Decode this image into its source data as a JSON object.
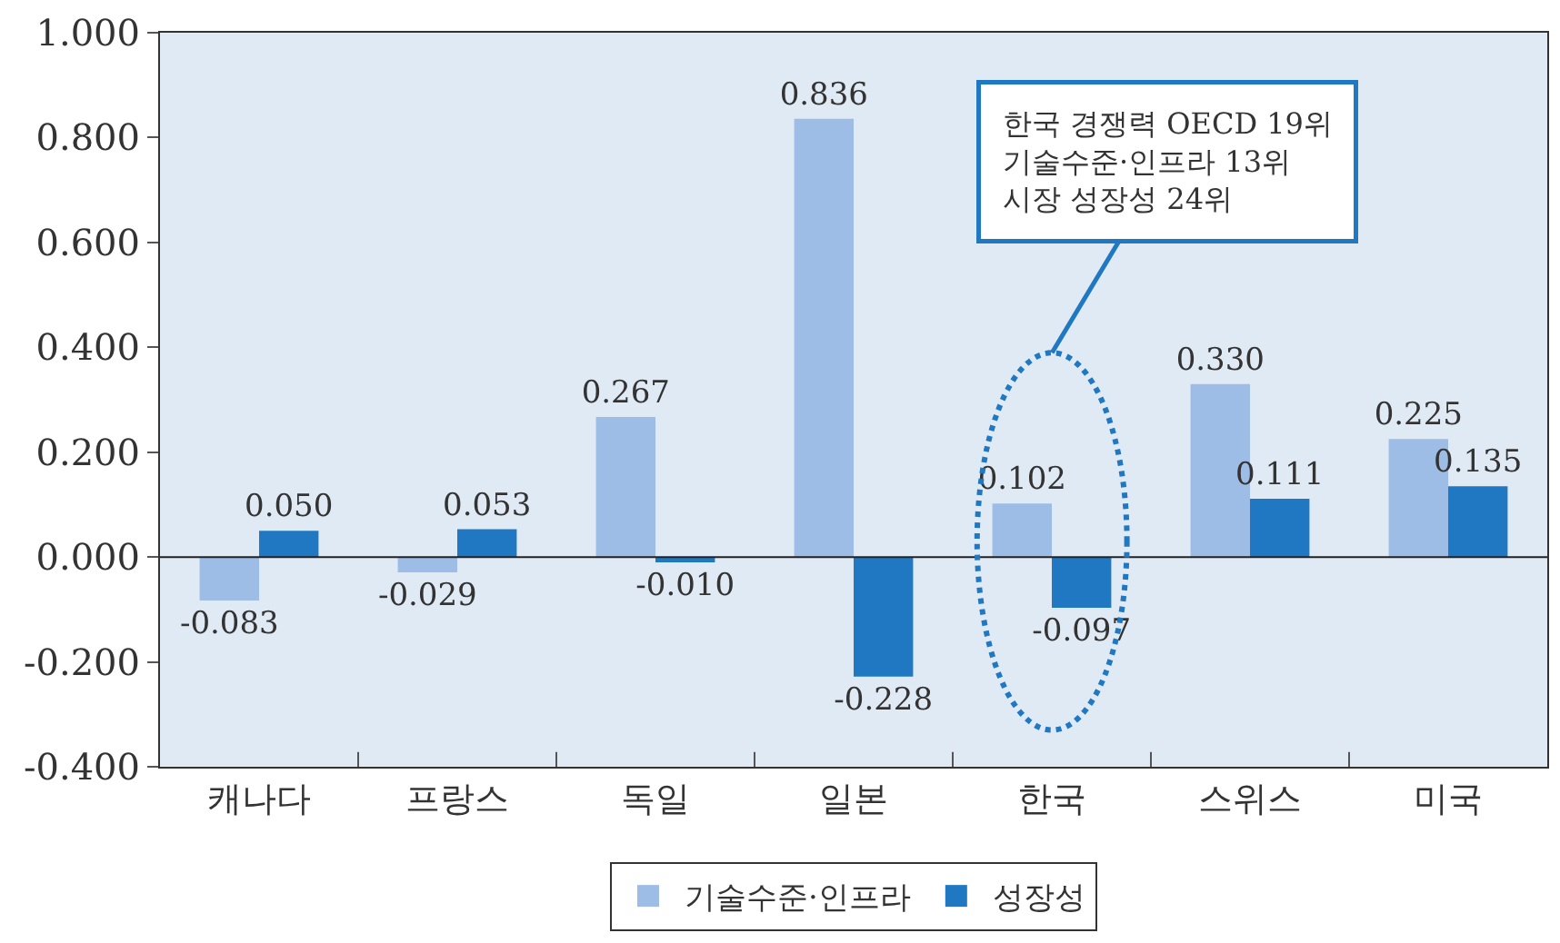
{
  "chart_data": {
    "type": "bar",
    "categories": [
      "캐나다",
      "프랑스",
      "독일",
      "일본",
      "한국",
      "스위스",
      "미국"
    ],
    "series": [
      {
        "name": "기술수준·인프라",
        "color": "#9dbde6",
        "values": [
          -0.083,
          -0.029,
          0.267,
          0.836,
          0.102,
          0.33,
          0.225
        ],
        "value_labels": [
          "-0.083",
          "-0.029",
          "0.267",
          "0.836",
          "0.102",
          "0.330",
          "0.225"
        ]
      },
      {
        "name": "성장성",
        "color": "#1f78c1",
        "values": [
          0.05,
          0.053,
          -0.01,
          -0.228,
          -0.097,
          0.111,
          0.135
        ],
        "value_labels": [
          "0.050",
          "0.053",
          "-0.010",
          "-0.228",
          "-0.097",
          "0.111",
          "0.135"
        ]
      }
    ],
    "ylim": [
      -0.4,
      1.0
    ],
    "yticks": [
      {
        "value": -0.4,
        "label": "-0.400"
      },
      {
        "value": -0.2,
        "label": "-0.200"
      },
      {
        "value": 0,
        "label": "0.000"
      },
      {
        "value": 0.2,
        "label": "0.200"
      },
      {
        "value": 0.4,
        "label": "0.400"
      },
      {
        "value": 0.6,
        "label": "0.600"
      },
      {
        "value": 0.8,
        "label": "0.800"
      },
      {
        "value": 1.0,
        "label": "1.000"
      }
    ],
    "annotations": [
      "한국 경쟁력 OECD 19위\n기술수준·인프라 13위\n시장 성장성 24위"
    ],
    "ref_lines": [
      {
        "axis": "y",
        "value": 0,
        "color": "#222222"
      }
    ],
    "grid": false,
    "legend": "bottom"
  }
}
